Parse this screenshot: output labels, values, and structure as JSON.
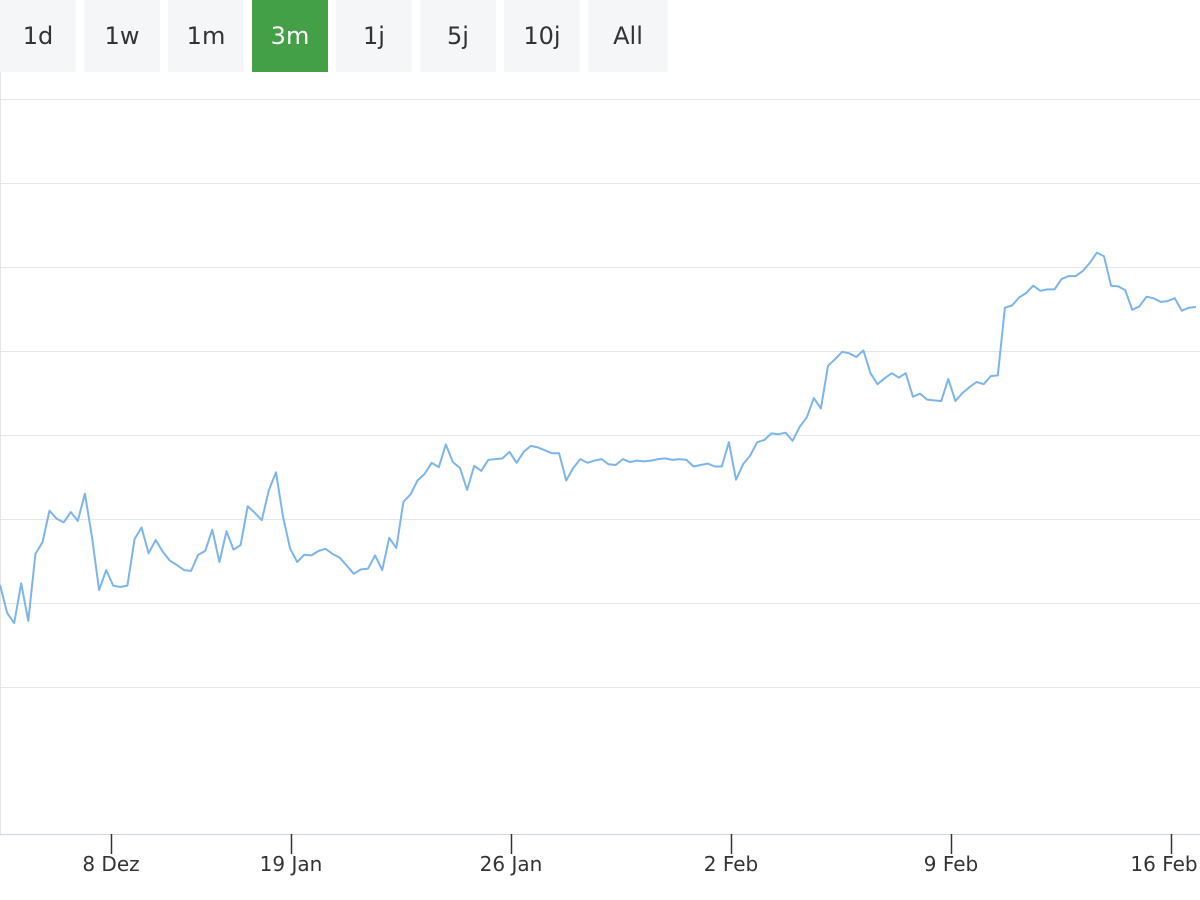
{
  "ranges": {
    "items": [
      "1d",
      "1w",
      "1m",
      "3m",
      "1j",
      "5j",
      "10j",
      "All"
    ],
    "selected": "3m"
  },
  "colors": {
    "line": "#7cb5ec",
    "grid": "#e6e6e6",
    "axis": "#ccd6eb",
    "active_button": "#43a047",
    "button_bg": "#f4f6f8"
  },
  "chart_data": {
    "type": "line",
    "title": "",
    "xlabel": "",
    "ylabel": "",
    "x_tick_labels": [
      "8 Dez",
      "19 Jan",
      "26 Jan",
      "2 Feb",
      "9 Feb",
      "16 Feb"
    ],
    "ylim": [
      0,
      100
    ],
    "grid": true,
    "legend": "none",
    "series": [
      {
        "values": [
          33.9,
          30.1,
          28.7,
          34.1,
          29.0,
          38.1,
          39.7,
          44.0,
          42.9,
          42.4,
          43.8,
          42.6,
          46.3,
          40.4,
          33.2,
          35.9,
          33.8,
          33.6,
          33.8,
          40.1,
          41.7,
          38.2,
          40.0,
          38.4,
          37.2,
          36.6,
          35.9,
          35.8,
          38.0,
          38.5,
          41.4,
          37.0,
          41.2,
          38.7,
          39.3,
          44.6,
          43.7,
          42.7,
          46.8,
          49.2,
          43.1,
          38.8,
          37.0,
          38.0,
          37.9,
          38.5,
          38.8,
          38.1,
          37.6,
          36.5,
          35.4,
          36.0,
          36.1,
          37.9,
          35.9,
          40.3,
          38.9,
          45.2,
          46.2,
          48.1,
          49.0,
          50.5,
          49.9,
          53.0,
          50.6,
          49.8,
          46.8,
          50.1,
          49.4,
          50.9,
          51.0,
          51.1,
          52.0,
          50.5,
          52.0,
          52.8,
          52.6,
          52.2,
          51.8,
          51.8,
          48.1,
          49.8,
          51.0,
          50.5,
          50.8,
          51.0,
          50.3,
          50.2,
          51.0,
          50.6,
          50.8,
          50.7,
          50.8,
          51.0,
          51.1,
          50.9,
          51.0,
          50.9,
          50.0,
          50.2,
          50.4,
          50.0,
          50.0,
          53.3,
          48.2,
          50.3,
          51.5,
          53.3,
          53.6,
          54.5,
          54.4,
          54.6,
          53.5,
          55.4,
          56.7,
          59.3,
          57.9,
          63.7,
          64.6,
          65.6,
          65.4,
          64.9,
          65.8,
          62.7,
          61.2,
          62.0,
          62.7,
          62.1,
          62.7,
          59.5,
          59.9,
          59.1,
          59.0,
          58.9,
          61.9,
          58.9,
          60.0,
          60.8,
          61.5,
          61.2,
          62.3,
          62.4,
          71.6,
          71.9,
          73.0,
          73.6,
          74.6,
          73.9,
          74.1,
          74.1,
          75.5,
          75.9,
          75.9,
          76.6,
          77.7,
          79.1,
          78.6,
          74.6,
          74.5,
          74.0,
          71.3,
          71.8,
          73.1,
          72.9,
          72.4,
          72.5,
          72.9,
          71.2,
          71.6,
          71.7
        ]
      }
    ]
  }
}
